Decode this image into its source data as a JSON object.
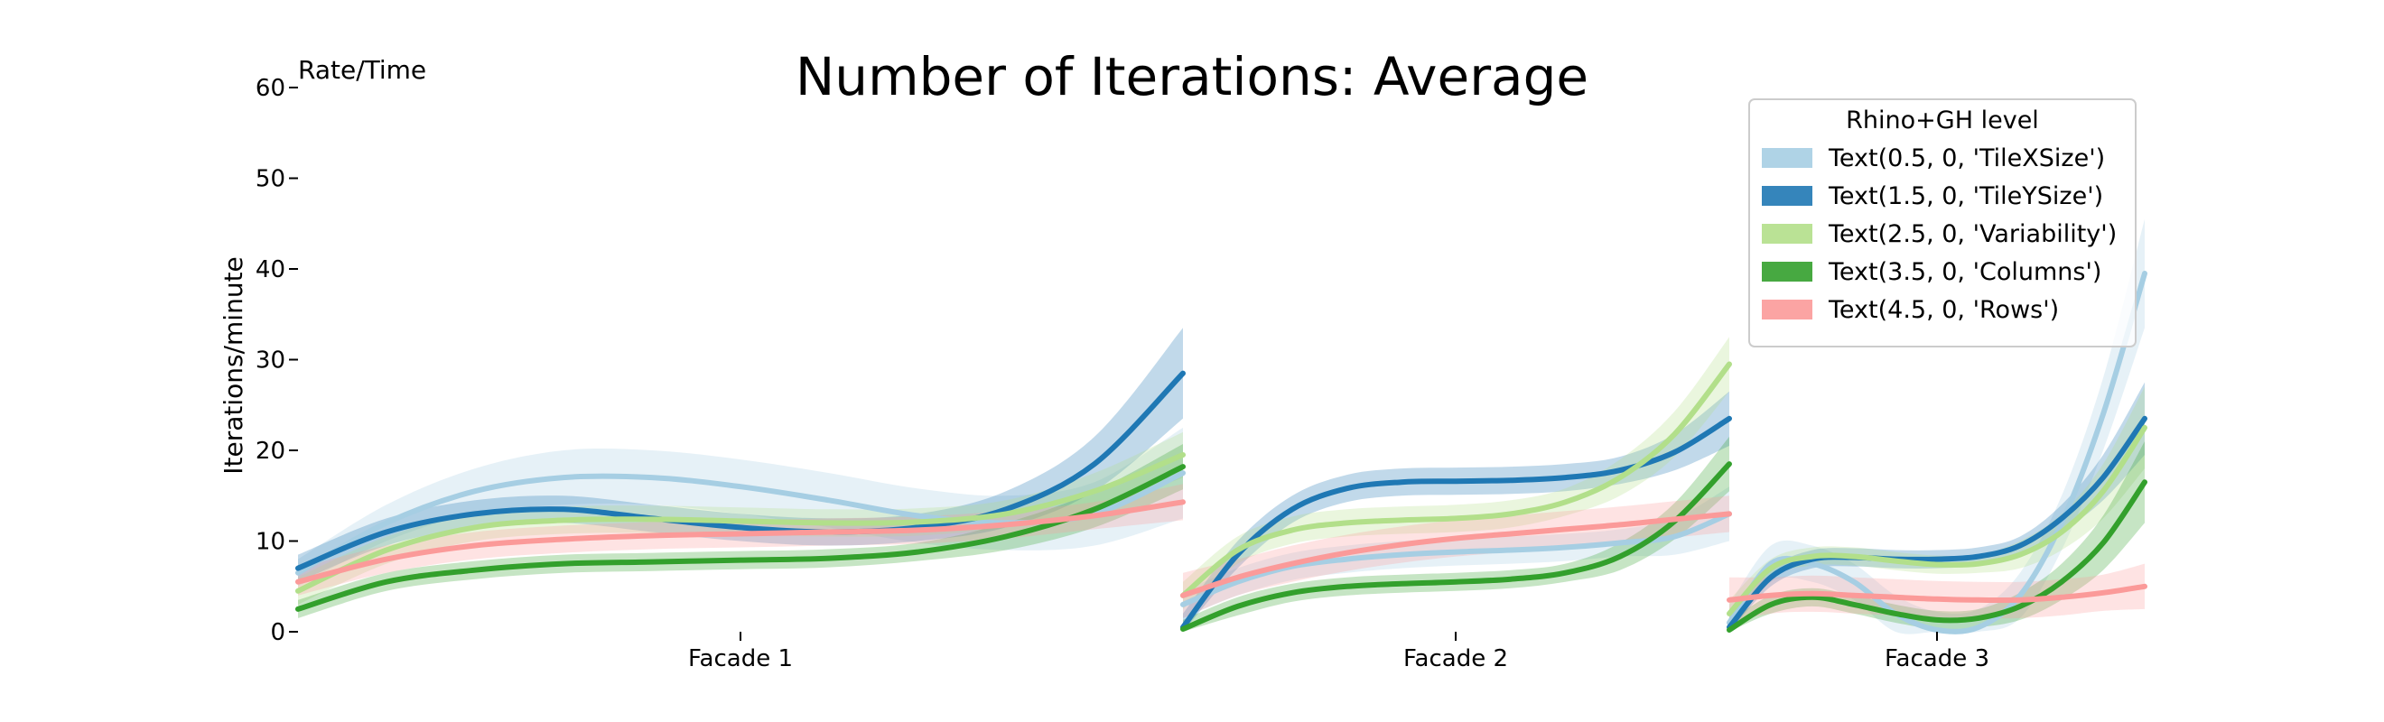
{
  "chart_data": {
    "type": "line",
    "title": "Number of Iterations: Average",
    "corner_label": "Rate/Time",
    "ylabel": "Iterations/minute",
    "ylim": [
      0,
      60
    ],
    "yticks": [
      0,
      10,
      20,
      30,
      40,
      50,
      60
    ],
    "grid": false,
    "panels": [
      {
        "label": "Facade 1",
        "xlim": [
          0,
          1
        ]
      },
      {
        "label": "Facade 2",
        "xlim": [
          0,
          1
        ]
      },
      {
        "label": "Facade 3",
        "xlim": [
          0,
          1
        ]
      }
    ],
    "legend": {
      "title": "Rhino+GH level",
      "placement": "top-right",
      "entries": [
        "Text(0.5, 0, 'TileXSize')",
        "Text(1.5, 0, 'TileYSize')",
        "Text(2.5, 0, 'Variability')",
        "Text(3.5, 0, 'Columns')",
        "Text(4.5, 0, 'Rows')"
      ]
    },
    "series": [
      {
        "name": "Text(0.5, 0, 'TileXSize')",
        "color": "#a6cee3",
        "panels": [
          {
            "x": [
              0,
              0.1,
              0.2,
              0.3,
              0.4,
              0.5,
              0.6,
              0.7,
              0.8,
              0.9,
              1.0
            ],
            "y": [
              6.5,
              12.0,
              15.5,
              17.0,
              17.0,
              16.0,
              14.5,
              12.8,
              12.0,
              13.0,
              17.5
            ],
            "band": [
              1.5,
              2.0,
              2.5,
              3.0,
              3.0,
              3.0,
              3.0,
              3.0,
              3.0,
              3.5,
              5.0
            ]
          },
          {
            "x": [
              0,
              0.1,
              0.2,
              0.3,
              0.4,
              0.5,
              0.6,
              0.7,
              0.8,
              0.9,
              1.0
            ],
            "y": [
              3.0,
              5.5,
              7.2,
              8.0,
              8.5,
              8.8,
              9.0,
              9.3,
              9.8,
              10.5,
              13.0
            ],
            "band": [
              1.5,
              1.5,
              1.5,
              1.5,
              1.5,
              1.5,
              1.5,
              1.5,
              1.5,
              2.0,
              3.0
            ]
          },
          {
            "x": [
              0,
              0.1,
              0.2,
              0.3,
              0.4,
              0.5,
              0.6,
              0.7,
              0.8,
              0.9,
              1.0
            ],
            "y": [
              1.0,
              7.5,
              7.5,
              5.5,
              2.0,
              0.2,
              0.5,
              4.0,
              12.0,
              24.0,
              39.5
            ],
            "band": [
              2.0,
              2.0,
              2.0,
              2.0,
              2.0,
              2.0,
              2.0,
              2.5,
              3.0,
              4.0,
              6.0
            ]
          }
        ]
      },
      {
        "name": "Text(1.5, 0, 'TileYSize')",
        "color": "#1f78b4",
        "panels": [
          {
            "x": [
              0,
              0.1,
              0.2,
              0.3,
              0.4,
              0.5,
              0.6,
              0.7,
              0.8,
              0.9,
              1.0
            ],
            "y": [
              7.0,
              11.0,
              13.0,
              13.5,
              12.5,
              11.5,
              11.0,
              11.5,
              13.5,
              18.5,
              28.5
            ],
            "band": [
              1.5,
              1.5,
              1.5,
              1.5,
              1.5,
              1.5,
              1.5,
              1.5,
              2.0,
              3.0,
              5.0
            ]
          },
          {
            "x": [
              0,
              0.1,
              0.2,
              0.3,
              0.4,
              0.5,
              0.6,
              0.7,
              0.8,
              0.9,
              1.0
            ],
            "y": [
              0.5,
              8.5,
              13.5,
              15.8,
              16.5,
              16.6,
              16.7,
              17.0,
              17.8,
              19.8,
              23.5
            ],
            "band": [
              1.5,
              1.5,
              1.5,
              1.5,
              1.5,
              1.5,
              1.5,
              1.5,
              1.5,
              2.0,
              3.0
            ]
          },
          {
            "x": [
              0,
              0.1,
              0.2,
              0.3,
              0.4,
              0.5,
              0.6,
              0.7,
              0.8,
              0.9,
              1.0
            ],
            "y": [
              0.5,
              6.0,
              8.0,
              8.2,
              8.0,
              8.0,
              8.3,
              9.5,
              12.5,
              17.0,
              23.5
            ],
            "band": [
              1.5,
              1.0,
              1.0,
              1.0,
              1.0,
              1.0,
              1.0,
              1.0,
              1.5,
              2.5,
              4.0
            ]
          }
        ]
      },
      {
        "name": "Text(2.5, 0, 'Variability')",
        "color": "#b2df8a",
        "panels": [
          {
            "x": [
              0,
              0.1,
              0.2,
              0.3,
              0.4,
              0.5,
              0.6,
              0.7,
              0.8,
              0.9,
              1.0
            ],
            "y": [
              4.5,
              9.0,
              11.5,
              12.3,
              12.4,
              12.2,
              12.0,
              12.1,
              13.0,
              15.5,
              19.5
            ],
            "band": [
              1.5,
              1.5,
              1.5,
              1.5,
              1.5,
              1.5,
              1.5,
              1.5,
              1.5,
              2.0,
              2.5
            ]
          },
          {
            "x": [
              0,
              0.1,
              0.2,
              0.3,
              0.4,
              0.5,
              0.6,
              0.7,
              0.8,
              0.9,
              1.0
            ],
            "y": [
              4.0,
              9.0,
              11.2,
              12.0,
              12.3,
              12.5,
              13.0,
              14.3,
              17.0,
              21.8,
              29.5
            ],
            "band": [
              1.5,
              1.5,
              1.5,
              1.5,
              1.5,
              1.5,
              1.5,
              1.5,
              2.0,
              2.5,
              3.0
            ]
          },
          {
            "x": [
              0,
              0.1,
              0.2,
              0.3,
              0.4,
              0.5,
              0.6,
              0.7,
              0.8,
              0.9,
              1.0
            ],
            "y": [
              2.0,
              7.0,
              8.3,
              8.3,
              7.8,
              7.4,
              7.5,
              8.5,
              11.0,
              15.5,
              22.5
            ],
            "band": [
              1.5,
              1.0,
              1.0,
              1.0,
              1.0,
              1.0,
              1.0,
              1.5,
              2.0,
              3.0,
              4.5
            ]
          }
        ]
      },
      {
        "name": "Text(3.5, 0, 'Columns')",
        "color": "#33a02c",
        "panels": [
          {
            "x": [
              0,
              0.1,
              0.2,
              0.3,
              0.4,
              0.5,
              0.6,
              0.7,
              0.8,
              0.9,
              1.0
            ],
            "y": [
              2.5,
              5.5,
              6.8,
              7.5,
              7.7,
              7.9,
              8.1,
              8.8,
              10.5,
              13.5,
              18.2
            ],
            "band": [
              1.0,
              1.0,
              1.0,
              1.0,
              1.0,
              1.0,
              1.0,
              1.0,
              1.5,
              2.0,
              2.5
            ]
          },
          {
            "x": [
              0,
              0.1,
              0.2,
              0.3,
              0.4,
              0.5,
              0.6,
              0.7,
              0.8,
              0.9,
              1.0
            ],
            "y": [
              0.3,
              2.8,
              4.3,
              5.0,
              5.3,
              5.5,
              5.8,
              6.5,
              8.3,
              12.2,
              18.5
            ],
            "band": [
              1.0,
              1.0,
              1.0,
              1.0,
              1.0,
              1.0,
              1.0,
              1.0,
              1.5,
              2.0,
              3.0
            ]
          },
          {
            "x": [
              0,
              0.1,
              0.2,
              0.3,
              0.4,
              0.5,
              0.6,
              0.7,
              0.8,
              0.9,
              1.0
            ],
            "y": [
              0.2,
              3.0,
              3.8,
              3.0,
              2.0,
              1.3,
              1.5,
              2.8,
              5.5,
              9.8,
              16.5
            ],
            "band": [
              1.0,
              1.0,
              1.0,
              1.0,
              1.0,
              1.0,
              1.0,
              1.5,
              2.0,
              3.0,
              4.5
            ]
          }
        ]
      },
      {
        "name": "Text(4.5, 0, 'Rows')",
        "color": "#fb9a99",
        "panels": [
          {
            "x": [
              0,
              0.1,
              0.2,
              0.3,
              0.4,
              0.5,
              0.6,
              0.7,
              0.8,
              0.9,
              1.0
            ],
            "y": [
              5.5,
              8.0,
              9.5,
              10.2,
              10.6,
              10.8,
              11.0,
              11.2,
              11.8,
              12.8,
              14.3
            ],
            "band": [
              1.5,
              1.5,
              1.5,
              1.5,
              1.5,
              1.5,
              1.5,
              1.5,
              1.5,
              1.5,
              2.0
            ]
          },
          {
            "x": [
              0,
              0.1,
              0.2,
              0.3,
              0.4,
              0.5,
              0.6,
              0.7,
              0.8,
              0.9,
              1.0
            ],
            "y": [
              4.0,
              6.0,
              7.5,
              8.7,
              9.6,
              10.3,
              10.8,
              11.3,
              11.8,
              12.4,
              13.0
            ],
            "band": [
              2.5,
              2.0,
              2.0,
              2.0,
              2.0,
              2.0,
              2.0,
              2.0,
              2.0,
              2.0,
              2.0
            ]
          },
          {
            "x": [
              0,
              0.1,
              0.2,
              0.3,
              0.4,
              0.5,
              0.6,
              0.7,
              0.8,
              0.9,
              1.0
            ],
            "y": [
              3.5,
              4.0,
              4.2,
              4.0,
              3.8,
              3.6,
              3.5,
              3.5,
              3.8,
              4.3,
              5.0
            ],
            "band": [
              2.5,
              2.0,
              2.0,
              2.0,
              2.0,
              2.0,
              2.0,
              2.0,
              2.0,
              2.0,
              2.5
            ]
          }
        ]
      }
    ]
  }
}
